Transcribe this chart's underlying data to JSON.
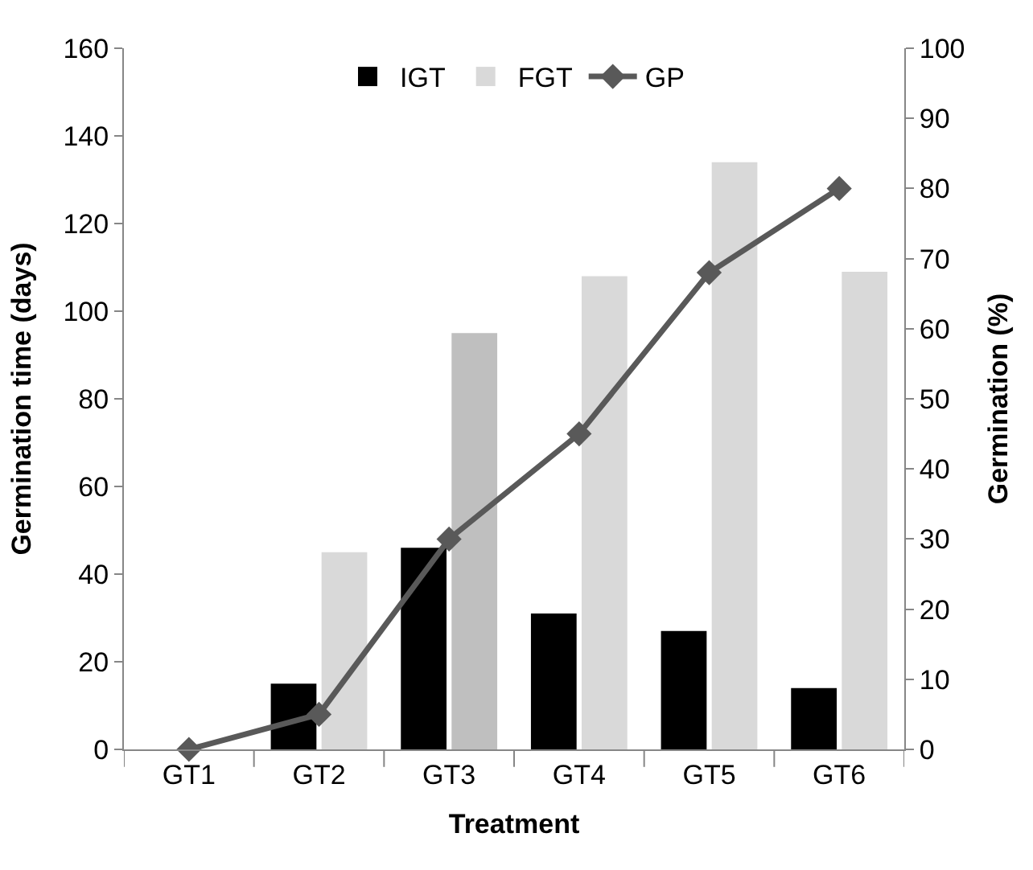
{
  "chart_data": {
    "type": "bar",
    "xlabel": "Treatment",
    "ylabel": "Germination time (days)",
    "y2label": "Germination (%)",
    "categories": [
      "GT1",
      "GT2",
      "GT3",
      "GT4",
      "GT5",
      "GT6"
    ],
    "series": [
      {
        "name": "IGT",
        "color": "#000000",
        "values": [
          null,
          15,
          46,
          31,
          27,
          14
        ]
      },
      {
        "name": "FGT",
        "color": "#d9d9d9",
        "colors": [
          "#d9d9d9",
          "#d9d9d9",
          "#bfbfbf",
          "#d9d9d9",
          "#d9d9d9",
          "#d9d9d9"
        ],
        "values": [
          null,
          45,
          95,
          108,
          134,
          109
        ]
      },
      {
        "name": "GP",
        "type": "line",
        "axis": "y2",
        "color": "#595959",
        "marker": "diamond",
        "values": [
          0,
          5,
          30,
          45,
          68,
          80
        ]
      }
    ],
    "ylim": [
      0,
      160
    ],
    "yticks": [
      0,
      20,
      40,
      60,
      80,
      100,
      120,
      140,
      160
    ],
    "y2lim": [
      0,
      100
    ],
    "y2ticks": [
      0,
      10,
      20,
      30,
      40,
      50,
      60,
      70,
      80,
      90,
      100
    ],
    "legend": "top"
  }
}
